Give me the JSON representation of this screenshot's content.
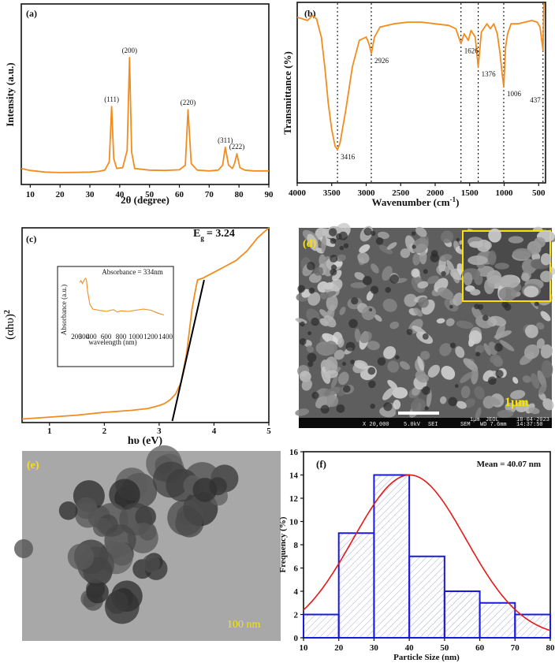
{
  "chart_data": [
    {
      "panel": "(a)",
      "type": "line",
      "xlabel": "2θ (degree)",
      "ylabel": "Intensity (a.u.)",
      "xlim": [
        7,
        90
      ],
      "xticks": [
        10,
        20,
        30,
        40,
        50,
        60,
        70,
        80,
        90
      ],
      "color": "#f28c1e",
      "x": [
        7,
        10,
        15,
        20,
        25,
        30,
        33,
        35,
        36.5,
        37.3,
        38,
        39,
        41,
        42.5,
        43.3,
        44,
        45,
        50,
        55,
        60,
        62,
        62.9,
        64,
        66,
        70,
        73,
        74.5,
        75.4,
        76.5,
        77.8,
        78.5,
        79.3,
        80.3,
        82,
        85,
        90
      ],
      "y": [
        4,
        2.8,
        1.8,
        1.5,
        1.6,
        1.8,
        2.2,
        3,
        8,
        42,
        10,
        4,
        4.5,
        15,
        72,
        14,
        4,
        3,
        2.8,
        3.2,
        6,
        40,
        7,
        3,
        2.5,
        3,
        6,
        17,
        6,
        4,
        7,
        13,
        4.5,
        3,
        2.5,
        2.5
      ],
      "annotations": [
        {
          "text": "(111)",
          "x": 37.3
        },
        {
          "text": "(200)",
          "x": 43.3
        },
        {
          "text": "(220)",
          "x": 62.9
        },
        {
          "text": "(311)",
          "x": 75.4
        },
        {
          "text": "(222)",
          "x": 79.3
        }
      ]
    },
    {
      "panel": "(b)",
      "type": "line",
      "xlabel": "Wavenumber (cm⁻¹)",
      "ylabel": "Transmittance (%)",
      "xlim": [
        4000,
        400
      ],
      "xticks": [
        4000,
        3500,
        3000,
        2500,
        2000,
        1500,
        1000,
        500
      ],
      "color": "#f28c1e",
      "x": [
        4000,
        3850,
        3780,
        3720,
        3650,
        3600,
        3550,
        3500,
        3450,
        3416,
        3380,
        3300,
        3200,
        3100,
        3000,
        2960,
        2926,
        2880,
        2800,
        2600,
        2400,
        2200,
        2000,
        1800,
        1700,
        1660,
        1626,
        1580,
        1520,
        1480,
        1420,
        1376,
        1330,
        1250,
        1200,
        1150,
        1100,
        1060,
        1030,
        1006,
        980,
        950,
        900,
        800,
        700,
        600,
        520,
        480,
        455,
        437,
        425,
        410
      ],
      "y": [
        92,
        90,
        93,
        91,
        80,
        62,
        40,
        24,
        14,
        12,
        16,
        35,
        62,
        78,
        80,
        76,
        70,
        80,
        86,
        88,
        89,
        89,
        88,
        87,
        85,
        80,
        76,
        82,
        78,
        84,
        80,
        62,
        83,
        88,
        85,
        88,
        82,
        70,
        58,
        50,
        74,
        82,
        88,
        88,
        89,
        90,
        89,
        86,
        78,
        72,
        100,
        100
      ],
      "markers": [
        {
          "text": "3416",
          "x": 3416
        },
        {
          "text": "2926",
          "x": 2926
        },
        {
          "text": "1626",
          "x": 1626
        },
        {
          "text": "1376",
          "x": 1376
        },
        {
          "text": "1006",
          "x": 1006
        },
        {
          "text": "437",
          "x": 437
        }
      ]
    },
    {
      "panel": "(c)",
      "type": "line",
      "xlabel": "hυ (eV)",
      "ylabel": "(αhυ)²",
      "xlim": [
        0.5,
        5
      ],
      "xticks": [
        1,
        2,
        3,
        4,
        5
      ],
      "annotation_prefix": "E",
      "annotation_subscript": "g",
      "annotation_value": "= 3.24",
      "color": "#f28c1e",
      "x": [
        0.5,
        1.0,
        1.5,
        2.0,
        2.5,
        2.8,
        3.0,
        3.1,
        3.2,
        3.3,
        3.4,
        3.5,
        3.6,
        3.65,
        3.7,
        3.8,
        4.0,
        4.2,
        4.4,
        4.6,
        4.8,
        5.0
      ],
      "y": [
        1,
        2,
        3,
        4.5,
        5.5,
        6.5,
        8,
        9,
        11,
        14,
        20,
        35,
        58,
        66,
        73,
        74,
        77,
        80,
        83,
        88,
        95,
        100
      ],
      "tangent": {
        "x": [
          3.24,
          3.82
        ],
        "y": [
          0,
          73
        ]
      },
      "inset": {
        "title": "Absorbance = 334nm",
        "xlabel": "wavelength (nm)",
        "ylabel": "Absorbance (a.u.)",
        "xlim": [
          200,
          1400
        ],
        "xticks": [
          200,
          300,
          400,
          600,
          800,
          1000,
          1200,
          1400
        ],
        "x": [
          240,
          260,
          280,
          300,
          320,
          334,
          350,
          380,
          420,
          500,
          600,
          700,
          750,
          800,
          900,
          1000,
          1100,
          1200,
          1300,
          1380
        ],
        "y": [
          85,
          88,
          83,
          88,
          92,
          90,
          70,
          48,
          40,
          38,
          36,
          39,
          35,
          37,
          36,
          38,
          40,
          38,
          33,
          30
        ]
      }
    },
    {
      "panel": "(f)",
      "type": "bar",
      "xlabel": "Particle Size (nm)",
      "ylabel": "Frequency (%)",
      "annotation": "Mean = 40.07 nm",
      "xlim": [
        10,
        80
      ],
      "ylim": [
        0,
        16
      ],
      "xticks": [
        10,
        20,
        30,
        40,
        50,
        60,
        70,
        80
      ],
      "yticks": [
        0,
        2,
        4,
        6,
        8,
        10,
        12,
        14,
        16
      ],
      "bins": [
        [
          10,
          20
        ],
        [
          20,
          30
        ],
        [
          30,
          40
        ],
        [
          40,
          50
        ],
        [
          50,
          60
        ],
        [
          60,
          70
        ],
        [
          70,
          80
        ]
      ],
      "values": [
        2,
        9,
        14,
        7,
        4,
        3,
        2
      ],
      "fit": {
        "mean": 40.07,
        "sd": 16,
        "peak": 14
      },
      "bar_color": "#1a1adf",
      "fit_color": "#e41a1a"
    }
  ],
  "images": {
    "sem": {
      "panel": "(d)",
      "scale_label": "1µm",
      "footer": [
        "X 20,000",
        "5.0kV",
        "SEI",
        "SEM",
        "1µm",
        "WD 7.6mm",
        "JEOL",
        "18-04-2023",
        "14:37:50"
      ]
    },
    "tem": {
      "panel": "(e)",
      "scale_label": "100 nm"
    }
  }
}
